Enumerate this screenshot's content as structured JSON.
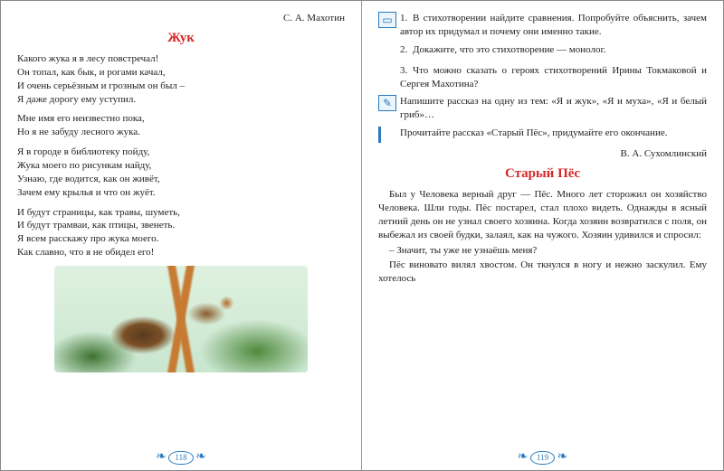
{
  "left": {
    "author": "С. А. Махотин",
    "title": "Жук",
    "stanzas": [
      [
        "Какого жука я в лесу повстречал!",
        "Он топал, как бык, и рогами качал,",
        "И очень серьёзным и грозным он был –",
        "Я даже дорогу ему уступил."
      ],
      [
        "Мне имя его неизвестно пока,",
        "Но я не забуду лесного жука."
      ],
      [
        "Я в городе в библиотеку пойду,",
        "Жука моего по рисункам найду,",
        "Узнаю, где водится, как он живёт,",
        "Зачем ему крылья и что он жуёт."
      ],
      [
        "И будут страницы, как травы, шуметь,",
        "И будут трамваи, как птицы, звенеть.",
        "Я всем расскажу про жука моего.",
        "Как славно, что я не обидел его!"
      ]
    ],
    "page_number": "118"
  },
  "right": {
    "tasks_numbered": [
      {
        "n": "1.",
        "text": "В стихотворении найдите сравнения. Попробуйте объяснить, зачем автор их придумал и почему они именно такие."
      },
      {
        "n": "2.",
        "text": "Докажите, что это стихотворение — монолог."
      },
      {
        "n": "3.",
        "text": "Что можно сказать о героях стихо­творений Ирины Токмаковой и Сергея Махотина?"
      }
    ],
    "task_write": "Напишите рассказ на одну из тем: «Я и жук», «Я и муха», «Я и белый гриб»…",
    "task_read": "Прочитайте рассказ «Старый Пёс», приду­майте его окончание.",
    "author": "В. А. Сухомлинский",
    "title": "Старый Пёс",
    "prose": [
      "Был у Человека верный друг — Пёс. Много лет сторожил он хозяйство Чело­века. Шли годы. Пёс постарел, стал плохо видеть. Однажды в ясный летний день он не узнал своего хозяина. Когда хозяин возвратился с поля, он выбежал из своей будки, залаял, как на чужого. Хозяин уди­вился и спросил:",
      "– Значит, ты уже не узнаёшь меня?",
      "Пёс виновато вилял хвостом. Он ткнулся в ногу и нежно заскулил. Ему хотелось"
    ],
    "icons": {
      "book": "▭",
      "pen": "✎"
    },
    "page_number": "119"
  },
  "ornament": "❧"
}
